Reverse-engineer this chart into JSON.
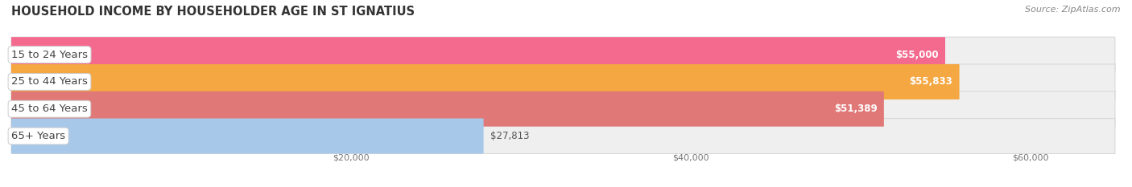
{
  "title": "HOUSEHOLD INCOME BY HOUSEHOLDER AGE IN ST IGNATIUS",
  "source": "Source: ZipAtlas.com",
  "categories": [
    "15 to 24 Years",
    "25 to 44 Years",
    "45 to 64 Years",
    "65+ Years"
  ],
  "values": [
    55000,
    55833,
    51389,
    27813
  ],
  "bar_colors": [
    "#F46A8E",
    "#F5A742",
    "#E07878",
    "#A8C8EA"
  ],
  "bar_bg_color": "#EFEFEF",
  "bar_border_color": "#D8D8D8",
  "value_labels": [
    "$55,000",
    "$55,833",
    "$51,389",
    "$27,813"
  ],
  "value_inside": [
    true,
    true,
    true,
    false
  ],
  "xmax": 65000,
  "xmin": 0,
  "xticks": [
    20000,
    40000,
    60000
  ],
  "xtick_labels": [
    "$20,000",
    "$40,000",
    "$60,000"
  ],
  "background_color": "#FFFFFF",
  "title_fontsize": 10.5,
  "source_fontsize": 8,
  "cat_label_fontsize": 9.5,
  "value_label_fontsize": 8.5,
  "tick_fontsize": 8
}
